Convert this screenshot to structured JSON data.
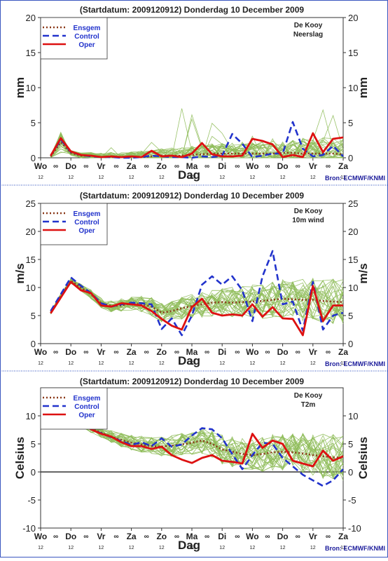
{
  "source_label": "Bron: ECMWF/KNMI",
  "legend_labels": [
    "Ensgem",
    "Control",
    "Oper"
  ],
  "colors": {
    "ensemble": "#8fbc5a",
    "ensgem": "#8b3a1a",
    "control": "#2233cc",
    "oper": "#dd1111",
    "text": "#222222",
    "source": "#1a1a9a",
    "separator": "#2244bb"
  },
  "chart_data": [
    {
      "type": "line",
      "title": "(Startdatum: 2009120912)   Donderdag 10 December  2009",
      "station": "De Kooy",
      "variable": "Neerslag",
      "ylabel": "mm",
      "xlabel": "Dag",
      "ylim": [
        0,
        20
      ],
      "yticks": [
        0,
        5,
        10,
        15,
        20
      ],
      "xlim": [
        0,
        15
      ],
      "x_day_labels": [
        "Wo",
        "Do",
        "Vr",
        "Za",
        "Zo",
        "Ma",
        "Di",
        "Wo",
        "Do",
        "Vr",
        "Za"
      ],
      "x_hour_labels": [
        "12",
        "12",
        "12",
        "12",
        "12",
        "12",
        "12",
        "12",
        "12",
        "12",
        "12"
      ],
      "x": [
        0.5,
        1,
        1.5,
        2,
        2.5,
        3,
        3.5,
        4,
        4.5,
        5,
        5.5,
        6,
        6.5,
        7,
        7.5,
        8,
        8.5,
        9,
        9.5,
        10,
        10.5,
        11,
        11.5,
        12,
        12.5,
        13,
        13.5,
        14,
        14.5,
        15
      ],
      "series": [
        {
          "name": "Ensgem",
          "values": [
            0.2,
            2.2,
            0.7,
            0.3,
            0.3,
            0.1,
            0.1,
            0.1,
            0.1,
            0.1,
            0.2,
            0.3,
            0.3,
            0.3,
            0.4,
            0.5,
            0.6,
            0.6,
            0.6,
            0.6,
            0.6,
            0.6,
            0.6,
            0.7,
            0.7,
            0.6,
            0.6,
            0.6,
            0.6,
            0.5
          ]
        },
        {
          "name": "Control",
          "values": [
            0.3,
            2.6,
            0.8,
            0.4,
            0.2,
            0.1,
            0.1,
            0.0,
            0.0,
            0.1,
            0.3,
            0.2,
            0.1,
            0.1,
            0.0,
            0.2,
            0.1,
            0.3,
            3.4,
            2.0,
            0.1,
            0.3,
            0.6,
            0.6,
            5.1,
            1.3,
            0.2,
            0.4,
            1.7,
            0.2
          ]
        },
        {
          "name": "Oper",
          "values": [
            0.3,
            2.8,
            0.9,
            0.4,
            0.3,
            0.1,
            0.2,
            0.1,
            0.2,
            0.1,
            1.0,
            0.2,
            0.3,
            0.1,
            0.6,
            2.1,
            0.5,
            0.2,
            0.2,
            0.3,
            2.7,
            2.4,
            1.9,
            0.1,
            0.4,
            0.1,
            3.5,
            0.8,
            2.7,
            2.9
          ]
        }
      ]
    },
    {
      "type": "line",
      "title": "(Startdatum: 2009120912)   Donderdag 10 December  2009",
      "station": "De Kooy",
      "variable": "10m wind",
      "ylabel": "m/s",
      "xlabel": "Dag",
      "ylim": [
        0,
        25
      ],
      "yticks": [
        0,
        5,
        10,
        15,
        20,
        25
      ],
      "xlim": [
        0,
        15
      ],
      "x_day_labels": [
        "Wo",
        "Do",
        "Vr",
        "Za",
        "Zo",
        "Ma",
        "Di",
        "Wo",
        "Do",
        "Vr",
        "Za"
      ],
      "x_hour_labels": [
        "12",
        "12",
        "12",
        "12",
        "12",
        "12",
        "12",
        "12",
        "12",
        "12",
        "12"
      ],
      "x": [
        0.5,
        1,
        1.5,
        2,
        2.5,
        3,
        3.5,
        4,
        4.5,
        5,
        5.5,
        6,
        6.5,
        7,
        7.5,
        8,
        8.5,
        9,
        9.5,
        10,
        10.5,
        11,
        11.5,
        12,
        12.5,
        13,
        13.5,
        14,
        14.5,
        15
      ],
      "series": [
        {
          "name": "Ensgem",
          "values": [
            5.5,
            8.5,
            11.2,
            10.0,
            8.8,
            7.2,
            6.7,
            6.8,
            7.2,
            7.0,
            6.6,
            5.5,
            5.8,
            6.3,
            6.7,
            7.0,
            7.3,
            7.4,
            7.3,
            7.4,
            7.5,
            7.6,
            7.8,
            8.0,
            7.9,
            7.8,
            7.8,
            7.6,
            7.5,
            7.4
          ]
        },
        {
          "name": "Control",
          "values": [
            5.8,
            8.8,
            11.8,
            10.3,
            9.0,
            7.2,
            6.6,
            7.0,
            7.3,
            7.2,
            7.0,
            2.6,
            4.5,
            1.5,
            5.0,
            10.5,
            12.0,
            10.5,
            12.0,
            9.5,
            4.0,
            12.0,
            16.5,
            7.0,
            7.5,
            2.3,
            11.0,
            2.5,
            5.0,
            5.5
          ]
        },
        {
          "name": "Oper",
          "values": [
            5.4,
            8.2,
            11.0,
            9.5,
            9.0,
            6.8,
            6.6,
            7.2,
            7.0,
            6.8,
            5.8,
            4.4,
            3.2,
            2.5,
            6.5,
            8.0,
            5.5,
            5.0,
            5.2,
            5.0,
            7.0,
            4.8,
            6.5,
            4.5,
            4.4,
            1.5,
            10.3,
            4.0,
            6.8,
            6.8
          ]
        }
      ]
    },
    {
      "type": "line",
      "title": "(Startdatum: 2009120912)   Donderdag 10 December  2009",
      "station": "De Kooy",
      "variable": "T2m",
      "ylabel": "Celsius",
      "xlabel": "Dag",
      "ylim": [
        -10,
        15
      ],
      "yticks": [
        -10,
        -5,
        0,
        5,
        10
      ],
      "xlim": [
        0,
        15
      ],
      "x_day_labels": [
        "Wo",
        "Do",
        "Vr",
        "Za",
        "Zo",
        "Ma",
        "Di",
        "Wo",
        "Do",
        "Vr",
        "Za"
      ],
      "x_hour_labels": [
        "12",
        "12",
        "12",
        "12",
        "12",
        "12",
        "12",
        "12",
        "12",
        "12",
        "12"
      ],
      "x": [
        0.5,
        1,
        1.5,
        2,
        2.5,
        3,
        3.5,
        4,
        4.5,
        5,
        5.5,
        6,
        6.5,
        7,
        7.5,
        8,
        8.5,
        9,
        9.5,
        10,
        10.5,
        11,
        11.5,
        12,
        12.5,
        13,
        13.5,
        14,
        14.5,
        15
      ],
      "series": [
        {
          "name": "Ensgem",
          "values": [
            9.6,
            9.4,
            9.2,
            8.6,
            7.8,
            7.0,
            6.3,
            5.7,
            5.2,
            4.9,
            4.6,
            4.5,
            4.7,
            4.9,
            5.2,
            5.6,
            5.0,
            4.0,
            3.6,
            3.2,
            3.0,
            3.2,
            3.5,
            3.6,
            3.5,
            3.3,
            3.0,
            2.8,
            2.6,
            2.5
          ]
        },
        {
          "name": "Control",
          "values": [
            9.8,
            9.5,
            9.3,
            8.7,
            7.6,
            6.9,
            6.2,
            5.5,
            4.8,
            5.3,
            4.6,
            6.0,
            4.5,
            4.9,
            6.5,
            7.8,
            7.6,
            6.0,
            3.2,
            0.5,
            3.0,
            5.2,
            5.0,
            2.5,
            1.0,
            -0.5,
            -1.5,
            -2.5,
            -1.5,
            0.5
          ]
        },
        {
          "name": "Oper",
          "values": [
            9.7,
            9.4,
            9.2,
            8.6,
            7.6,
            6.8,
            6.3,
            5.3,
            4.6,
            4.6,
            4.1,
            4.5,
            3.0,
            2.2,
            1.6,
            2.5,
            3.0,
            2.0,
            1.8,
            1.5,
            6.8,
            4.3,
            5.6,
            5.0,
            2.0,
            1.5,
            1.0,
            3.8,
            2.0,
            2.8
          ]
        }
      ]
    }
  ]
}
